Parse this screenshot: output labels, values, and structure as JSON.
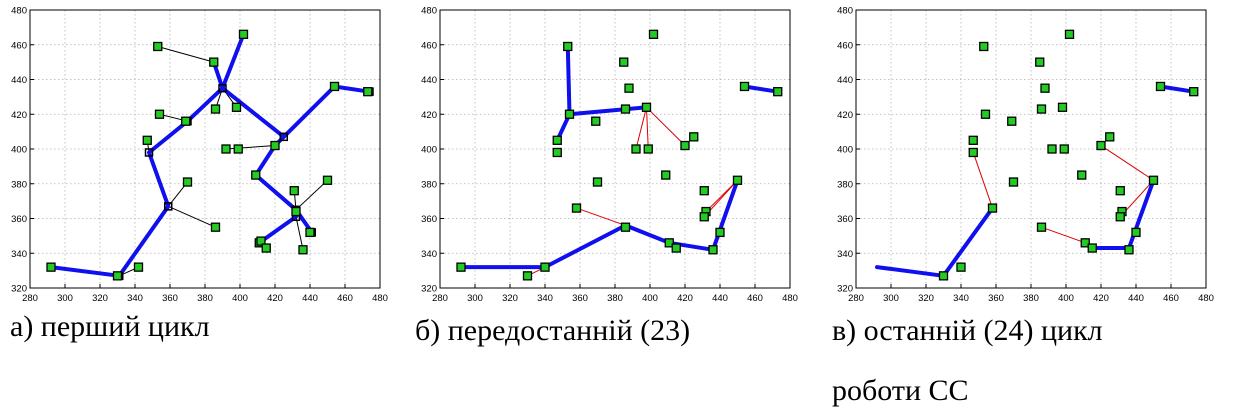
{
  "colors": {
    "tree": "#1010ee",
    "link": "#000000",
    "target": "#dd0000",
    "node_fill": "#22cc22",
    "node_stroke": "#000000",
    "grid": "#b0b0b0"
  },
  "captions": [
    {
      "line1": "а) перший цикл",
      "line2": ""
    },
    {
      "line1": "б) передостанній (23)",
      "line2": ""
    },
    {
      "line1": "в) останній (24) цикл",
      "line2": "роботи СС"
    }
  ],
  "chart_data": [
    {
      "type": "scatter",
      "title": "",
      "xlim": [
        280,
        480
      ],
      "ylim": [
        320,
        480
      ],
      "x_ticks": [
        280,
        300,
        320,
        340,
        360,
        380,
        400,
        420,
        440,
        460,
        480
      ],
      "y_ticks": [
        320,
        340,
        360,
        380,
        400,
        420,
        440,
        460,
        480
      ],
      "grid": true,
      "points": [
        [
          292,
          332
        ],
        [
          330,
          327
        ],
        [
          342,
          332
        ],
        [
          353,
          459
        ],
        [
          354,
          420
        ],
        [
          347,
          405
        ],
        [
          369,
          416
        ],
        [
          386,
          423
        ],
        [
          385,
          450
        ],
        [
          398,
          424
        ],
        [
          402,
          466
        ],
        [
          392,
          400
        ],
        [
          399,
          400
        ],
        [
          420,
          402
        ],
        [
          409,
          385
        ],
        [
          370,
          381
        ],
        [
          386,
          355
        ],
        [
          411,
          346
        ],
        [
          412,
          347
        ],
        [
          415,
          343
        ],
        [
          431,
          376
        ],
        [
          432,
          364
        ],
        [
          436,
          342
        ],
        [
          440,
          352
        ],
        [
          450,
          382
        ],
        [
          454,
          436
        ],
        [
          473,
          433
        ]
      ],
      "chart_line_nodes": [
        [
          292,
          332
        ],
        [
          331,
          327
        ],
        [
          359,
          367
        ],
        [
          348,
          398
        ],
        [
          370,
          416
        ],
        [
          390,
          435
        ],
        [
          385,
          450
        ],
        [
          402,
          466
        ],
        [
          425,
          407
        ],
        [
          454,
          436
        ],
        [
          474,
          433
        ],
        [
          420,
          402
        ],
        [
          409,
          385
        ],
        [
          432,
          365
        ],
        [
          432,
          361
        ],
        [
          411,
          346
        ],
        [
          441,
          352
        ]
      ],
      "thick_paths": [
        [
          [
            292,
            332
          ],
          [
            331,
            327
          ],
          [
            359,
            367
          ],
          [
            348,
            398
          ],
          [
            370,
            416
          ],
          [
            390,
            435
          ],
          [
            385,
            450
          ]
        ],
        [
          [
            390,
            435
          ],
          [
            402,
            466
          ]
        ],
        [
          [
            390,
            435
          ],
          [
            425,
            407
          ],
          [
            454,
            436
          ],
          [
            474,
            433
          ]
        ],
        [
          [
            425,
            407
          ],
          [
            420,
            402
          ],
          [
            409,
            385
          ],
          [
            432,
            365
          ],
          [
            441,
            352
          ]
        ],
        [
          [
            411,
            346
          ],
          [
            432,
            361
          ]
        ]
      ],
      "thin_links": [
        [
          [
            353,
            459
          ],
          [
            385,
            450
          ]
        ],
        [
          [
            354,
            420
          ],
          [
            370,
            416
          ]
        ],
        [
          [
            347,
            405
          ],
          [
            348,
            398
          ]
        ],
        [
          [
            386,
            423
          ],
          [
            390,
            435
          ]
        ],
        [
          [
            398,
            424
          ],
          [
            390,
            435
          ]
        ],
        [
          [
            392,
            400
          ],
          [
            420,
            402
          ]
        ],
        [
          [
            370,
            381
          ],
          [
            359,
            367
          ]
        ],
        [
          [
            386,
            355
          ],
          [
            359,
            367
          ]
        ],
        [
          [
            342,
            332
          ],
          [
            331,
            327
          ]
        ],
        [
          [
            431,
            376
          ],
          [
            432,
            365
          ]
        ],
        [
          [
            450,
            382
          ],
          [
            432,
            365
          ]
        ],
        [
          [
            415,
            343
          ],
          [
            411,
            346
          ]
        ],
        [
          [
            436,
            342
          ],
          [
            432,
            361
          ]
        ],
        [
          [
            412,
            347
          ],
          [
            411,
            346
          ]
        ]
      ],
      "thin_color": "link"
    },
    {
      "type": "scatter",
      "title": "",
      "xlim": [
        280,
        480
      ],
      "ylim": [
        320,
        480
      ],
      "x_ticks": [
        280,
        300,
        320,
        340,
        360,
        380,
        400,
        420,
        440,
        460,
        480
      ],
      "y_ticks": [
        320,
        340,
        360,
        380,
        400,
        420,
        440,
        460,
        480
      ],
      "grid": true,
      "points": [
        [
          292,
          332
        ],
        [
          330,
          327
        ],
        [
          340,
          332
        ],
        [
          353,
          459
        ],
        [
          354,
          420
        ],
        [
          347,
          405
        ],
        [
          347,
          398
        ],
        [
          369,
          416
        ],
        [
          386,
          423
        ],
        [
          385,
          450
        ],
        [
          388,
          435
        ],
        [
          398,
          424
        ],
        [
          402,
          466
        ],
        [
          392,
          400
        ],
        [
          399,
          400
        ],
        [
          420,
          402
        ],
        [
          425,
          407
        ],
        [
          409,
          385
        ],
        [
          370,
          381
        ],
        [
          358,
          366
        ],
        [
          386,
          355
        ],
        [
          411,
          346
        ],
        [
          415,
          343
        ],
        [
          431,
          376
        ],
        [
          432,
          364
        ],
        [
          431,
          361
        ],
        [
          436,
          342
        ],
        [
          440,
          352
        ],
        [
          450,
          382
        ],
        [
          454,
          436
        ],
        [
          473,
          433
        ]
      ],
      "thick_paths": [
        [
          [
            292,
            332
          ],
          [
            340,
            332
          ],
          [
            386,
            356
          ],
          [
            411,
            346
          ],
          [
            436,
            342
          ],
          [
            450,
            382
          ]
        ],
        [
          [
            347,
            405
          ],
          [
            354,
            420
          ],
          [
            398,
            424
          ]
        ],
        [
          [
            354,
            420
          ],
          [
            353,
            459
          ]
        ],
        [
          [
            454,
            436
          ],
          [
            473,
            433
          ]
        ]
      ],
      "thin_links": [
        [
          [
            330,
            327
          ],
          [
            340,
            332
          ]
        ],
        [
          [
            358,
            366
          ],
          [
            386,
            356
          ]
        ],
        [
          [
            398,
            424
          ],
          [
            392,
            400
          ]
        ],
        [
          [
            398,
            424
          ],
          [
            399,
            400
          ]
        ],
        [
          [
            398,
            424
          ],
          [
            420,
            402
          ]
        ],
        [
          [
            450,
            382
          ],
          [
            432,
            364
          ]
        ],
        [
          [
            450,
            382
          ],
          [
            431,
            361
          ]
        ]
      ],
      "thin_color": "target"
    },
    {
      "type": "scatter",
      "title": "",
      "xlim": [
        280,
        480
      ],
      "ylim": [
        320,
        480
      ],
      "x_ticks": [
        280,
        300,
        320,
        340,
        360,
        380,
        400,
        420,
        440,
        460,
        480
      ],
      "y_ticks": [
        320,
        340,
        360,
        380,
        400,
        420,
        440,
        460,
        480
      ],
      "grid": true,
      "points": [
        [
          330,
          327
        ],
        [
          340,
          332
        ],
        [
          353,
          459
        ],
        [
          354,
          420
        ],
        [
          347,
          405
        ],
        [
          347,
          398
        ],
        [
          369,
          416
        ],
        [
          386,
          423
        ],
        [
          385,
          450
        ],
        [
          388,
          435
        ],
        [
          398,
          424
        ],
        [
          402,
          466
        ],
        [
          392,
          400
        ],
        [
          399,
          400
        ],
        [
          420,
          402
        ],
        [
          425,
          407
        ],
        [
          409,
          385
        ],
        [
          370,
          381
        ],
        [
          358,
          366
        ],
        [
          386,
          355
        ],
        [
          411,
          346
        ],
        [
          415,
          343
        ],
        [
          431,
          376
        ],
        [
          432,
          364
        ],
        [
          431,
          361
        ],
        [
          436,
          342
        ],
        [
          440,
          352
        ],
        [
          450,
          382
        ],
        [
          454,
          436
        ],
        [
          473,
          433
        ]
      ],
      "thick_paths": [
        [
          [
            292,
            332
          ],
          [
            330,
            327
          ],
          [
            358,
            366
          ]
        ],
        [
          [
            415,
            343
          ],
          [
            436,
            343
          ],
          [
            450,
            382
          ]
        ],
        [
          [
            454,
            436
          ],
          [
            473,
            433
          ]
        ]
      ],
      "thin_links": [
        [
          [
            347,
            398
          ],
          [
            358,
            366
          ]
        ],
        [
          [
            386,
            355
          ],
          [
            411,
            346
          ]
        ],
        [
          [
            411,
            346
          ],
          [
            415,
            343
          ]
        ],
        [
          [
            420,
            402
          ],
          [
            450,
            382
          ]
        ],
        [
          [
            431,
            361
          ],
          [
            450,
            382
          ]
        ]
      ],
      "thin_color": "target"
    }
  ]
}
